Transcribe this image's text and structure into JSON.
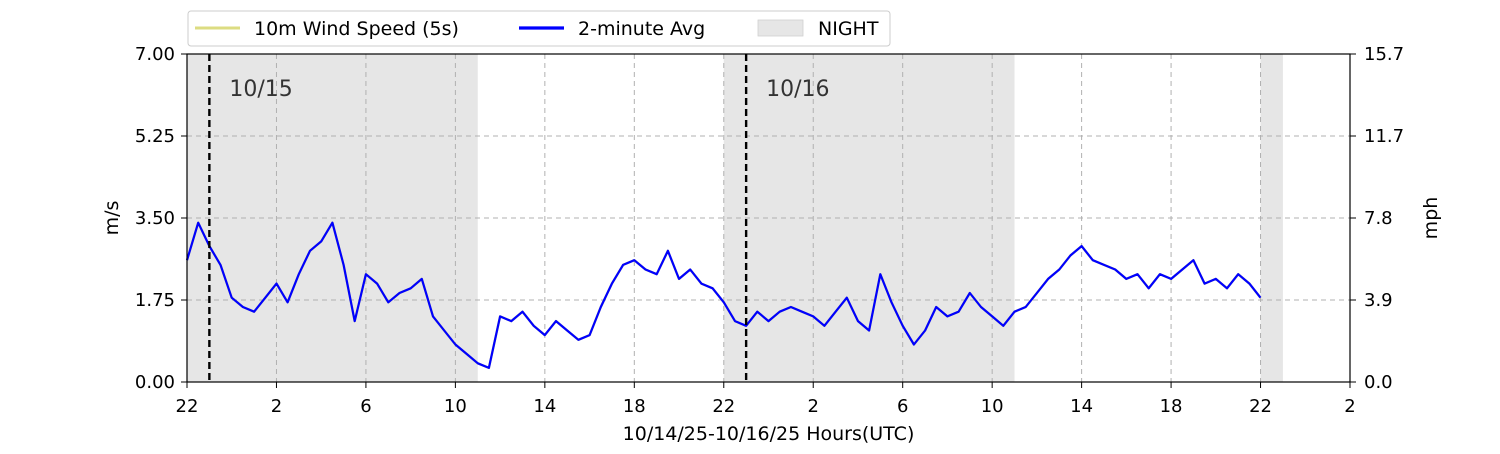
{
  "chart_data": {
    "type": "line",
    "xlabel": "10/14/25-10/16/25  Hours(UTC)",
    "ylabel_left": "m/s",
    "ylabel_right": "mph",
    "x_hours_range": [
      -2,
      50
    ],
    "x_ticks": [
      {
        "hour": -2,
        "label": "22"
      },
      {
        "hour": 2,
        "label": "2"
      },
      {
        "hour": 6,
        "label": "6"
      },
      {
        "hour": 10,
        "label": "10"
      },
      {
        "hour": 14,
        "label": "14"
      },
      {
        "hour": 18,
        "label": "18"
      },
      {
        "hour": 22,
        "label": "22"
      },
      {
        "hour": 26,
        "label": "2"
      },
      {
        "hour": 30,
        "label": "6"
      },
      {
        "hour": 34,
        "label": "10"
      },
      {
        "hour": 38,
        "label": "14"
      },
      {
        "hour": 42,
        "label": "18"
      },
      {
        "hour": 46,
        "label": "22"
      },
      {
        "hour": 50,
        "label": "2"
      }
    ],
    "ylim": [
      0,
      7.0
    ],
    "y_ticks_left": [
      "0.00",
      "1.75",
      "3.50",
      "5.25",
      "7.00"
    ],
    "y_ticks_right": [
      "0.0",
      "3.9",
      "7.8",
      "11.7",
      "15.7"
    ],
    "grid": true,
    "legend_position": "top-left outside",
    "legend": [
      {
        "label": "10m Wind Speed (5s)",
        "kind": "line",
        "color": "#dcdc82"
      },
      {
        "label": "2-minute Avg",
        "kind": "line",
        "color": "#0000ff"
      },
      {
        "label": "NIGHT",
        "kind": "patch",
        "color": "#e6e6e6"
      }
    ],
    "night_periods": [
      [
        -2,
        11
      ],
      [
        22,
        35
      ],
      [
        46,
        47
      ]
    ],
    "day_markers": [
      {
        "hour": -1,
        "label": "10/15"
      },
      {
        "hour": 23,
        "label": "10/16"
      }
    ],
    "series": [
      {
        "name": "10m Wind Speed (5s)",
        "color": "#dcdc82",
        "x": [
          -2,
          -1.5,
          -1,
          -0.5,
          0,
          0.5,
          1,
          1.5,
          2,
          2.5,
          3,
          3.5,
          4,
          4.5,
          5,
          5.5,
          6,
          6.5,
          7,
          7.5,
          8,
          8.5,
          9,
          9.5,
          10,
          10.5,
          11,
          11.5,
          12,
          12.5,
          13,
          13.5,
          14,
          14.5,
          15,
          15.5,
          16,
          16.5,
          17,
          17.5,
          18,
          18.5,
          19,
          19.5,
          20,
          20.5,
          21,
          21.5,
          22,
          22.5,
          23,
          23.5,
          24,
          24.5,
          25,
          25.5,
          26,
          26.5,
          27,
          27.5,
          28,
          28.5,
          29,
          29.5,
          30,
          30.5,
          31,
          31.5,
          32,
          32.5,
          33,
          33.5,
          34,
          34.5,
          35,
          35.5,
          36,
          36.5,
          37,
          37.5,
          38,
          38.5,
          39,
          39.5,
          40,
          40.5,
          41,
          41.5,
          42,
          42.5,
          43,
          43.5,
          44,
          44.5,
          45,
          45.5,
          46
        ],
        "y": [
          2.6,
          3.4,
          2.9,
          2.5,
          1.8,
          1.6,
          1.5,
          1.8,
          2.1,
          1.7,
          2.3,
          2.8,
          3.0,
          3.4,
          2.5,
          1.3,
          2.3,
          2.1,
          1.7,
          1.9,
          2.0,
          2.2,
          1.4,
          1.1,
          0.8,
          0.6,
          0.4,
          0.3,
          1.4,
          1.3,
          1.5,
          1.2,
          1.0,
          1.3,
          1.1,
          0.9,
          1.0,
          1.6,
          2.1,
          2.5,
          2.6,
          2.4,
          2.3,
          2.8,
          2.2,
          2.4,
          2.1,
          2.0,
          1.7,
          1.3,
          1.2,
          1.5,
          1.3,
          1.5,
          1.6,
          1.5,
          1.4,
          1.2,
          1.5,
          1.8,
          1.3,
          1.1,
          2.3,
          1.7,
          1.2,
          0.8,
          1.1,
          1.6,
          1.4,
          1.5,
          1.9,
          1.6,
          1.4,
          1.2,
          1.5,
          1.6,
          1.9,
          2.2,
          2.4,
          2.7,
          2.9,
          2.6,
          2.5,
          2.4,
          2.2,
          2.3,
          2.0,
          2.3,
          2.2,
          2.4,
          2.6,
          2.1,
          2.2,
          2.0,
          2.3,
          2.1,
          1.8
        ]
      },
      {
        "name": "2-minute Avg",
        "color": "#0000ff",
        "x": [
          -2,
          -1.5,
          -1,
          -0.5,
          0,
          0.5,
          1,
          1.5,
          2,
          2.5,
          3,
          3.5,
          4,
          4.5,
          5,
          5.5,
          6,
          6.5,
          7,
          7.5,
          8,
          8.5,
          9,
          9.5,
          10,
          10.5,
          11,
          11.5,
          12,
          12.5,
          13,
          13.5,
          14,
          14.5,
          15,
          15.5,
          16,
          16.5,
          17,
          17.5,
          18,
          18.5,
          19,
          19.5,
          20,
          20.5,
          21,
          21.5,
          22,
          22.5,
          23,
          23.5,
          24,
          24.5,
          25,
          25.5,
          26,
          26.5,
          27,
          27.5,
          28,
          28.5,
          29,
          29.5,
          30,
          30.5,
          31,
          31.5,
          32,
          32.5,
          33,
          33.5,
          34,
          34.5,
          35,
          35.5,
          36,
          36.5,
          37,
          37.5,
          38,
          38.5,
          39,
          39.5,
          40,
          40.5,
          41,
          41.5,
          42,
          42.5,
          43,
          43.5,
          44,
          44.5,
          45,
          45.5,
          46
        ],
        "y": [
          2.6,
          3.4,
          2.9,
          2.5,
          1.8,
          1.6,
          1.5,
          1.8,
          2.1,
          1.7,
          2.3,
          2.8,
          3.0,
          3.4,
          2.5,
          1.3,
          2.3,
          2.1,
          1.7,
          1.9,
          2.0,
          2.2,
          1.4,
          1.1,
          0.8,
          0.6,
          0.4,
          0.3,
          1.4,
          1.3,
          1.5,
          1.2,
          1.0,
          1.3,
          1.1,
          0.9,
          1.0,
          1.6,
          2.1,
          2.5,
          2.6,
          2.4,
          2.3,
          2.8,
          2.2,
          2.4,
          2.1,
          2.0,
          1.7,
          1.3,
          1.2,
          1.5,
          1.3,
          1.5,
          1.6,
          1.5,
          1.4,
          1.2,
          1.5,
          1.8,
          1.3,
          1.1,
          2.3,
          1.7,
          1.2,
          0.8,
          1.1,
          1.6,
          1.4,
          1.5,
          1.9,
          1.6,
          1.4,
          1.2,
          1.5,
          1.6,
          1.9,
          2.2,
          2.4,
          2.7,
          2.9,
          2.6,
          2.5,
          2.4,
          2.2,
          2.3,
          2.0,
          2.3,
          2.2,
          2.4,
          2.6,
          2.1,
          2.2,
          2.0,
          2.3,
          2.1,
          1.8
        ]
      }
    ]
  }
}
